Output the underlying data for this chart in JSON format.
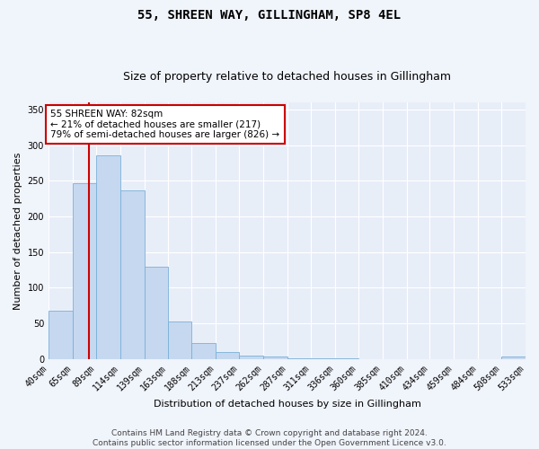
{
  "title": "55, SHREEN WAY, GILLINGHAM, SP8 4EL",
  "subtitle": "Size of property relative to detached houses in Gillingham",
  "xlabel": "Distribution of detached houses by size in Gillingham",
  "ylabel": "Number of detached properties",
  "bin_edges": [
    40,
    65,
    89,
    114,
    139,
    163,
    188,
    213,
    237,
    262,
    287,
    311,
    336,
    360,
    385,
    410,
    434,
    459,
    484,
    508,
    533
  ],
  "bar_heights": [
    68,
    247,
    286,
    236,
    129,
    53,
    23,
    10,
    5,
    3,
    1,
    1,
    1,
    0,
    0,
    0,
    0,
    0,
    0,
    3
  ],
  "bar_color": "#c5d8f0",
  "bar_edge_color": "#7ab0d8",
  "property_size": 82,
  "vline_color": "#cc0000",
  "annotation_text": "55 SHREEN WAY: 82sqm\n← 21% of detached houses are smaller (217)\n79% of semi-detached houses are larger (826) →",
  "annotation_box_color": "#ffffff",
  "annotation_box_edge": "#cc0000",
  "ylim": [
    0,
    360
  ],
  "yticks": [
    0,
    50,
    100,
    150,
    200,
    250,
    300,
    350
  ],
  "footer_line1": "Contains HM Land Registry data © Crown copyright and database right 2024.",
  "footer_line2": "Contains public sector information licensed under the Open Government Licence v3.0.",
  "fig_bg_color": "#f0f4fb",
  "plot_bg_color": "#e8eef8",
  "grid_color": "#ffffff",
  "title_fontsize": 10,
  "subtitle_fontsize": 9,
  "axis_label_fontsize": 8,
  "tick_fontsize": 7,
  "annotation_fontsize": 7.5,
  "footer_fontsize": 6.5
}
